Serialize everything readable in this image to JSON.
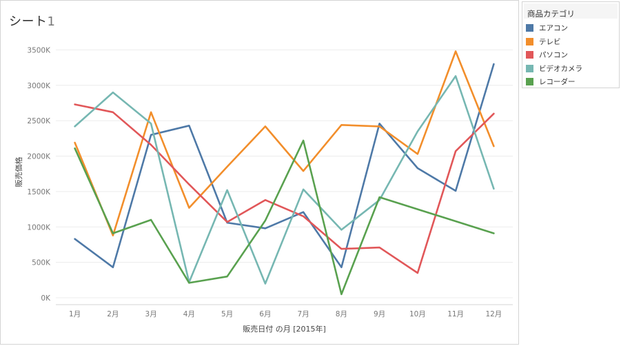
{
  "sheet": {
    "title": "シート",
    "title_number": "1"
  },
  "legend": {
    "title": "商品カテゴリ"
  },
  "chart_data": {
    "type": "line",
    "xlabel": "販売日付 の月 [2015年]",
    "ylabel": "販売価格",
    "categories": [
      "1月",
      "2月",
      "3月",
      "4月",
      "5月",
      "6月",
      "7月",
      "8月",
      "9月",
      "10月",
      "11月",
      "12月"
    ],
    "ylim": [
      0,
      3500000
    ],
    "yticks": [
      0,
      500000,
      1000000,
      1500000,
      2000000,
      2500000,
      3000000,
      3500000
    ],
    "ytick_labels": [
      "0K",
      "500K",
      "1000K",
      "1500K",
      "2000K",
      "2500K",
      "3000K",
      "3500K"
    ],
    "grid": true,
    "legend_position": "right",
    "series": [
      {
        "name": "エアコン",
        "color": "#4e79a7",
        "values": [
          830000,
          430000,
          2300000,
          2430000,
          1060000,
          980000,
          1210000,
          430000,
          2460000,
          1830000,
          1510000,
          3300000
        ]
      },
      {
        "name": "テレビ",
        "color": "#f28e2b",
        "values": [
          2190000,
          880000,
          2620000,
          1270000,
          1850000,
          2420000,
          1790000,
          2440000,
          2420000,
          2030000,
          3480000,
          2140000
        ]
      },
      {
        "name": "パソコン",
        "color": "#e15759",
        "values": [
          2730000,
          2620000,
          2160000,
          1600000,
          1070000,
          1380000,
          1150000,
          690000,
          710000,
          350000,
          2070000,
          2600000
        ]
      },
      {
        "name": "ビデオカメラ",
        "color": "#76b7b2",
        "values": [
          2420000,
          2900000,
          2460000,
          220000,
          1520000,
          200000,
          1530000,
          960000,
          1380000,
          2350000,
          3130000,
          1540000
        ]
      },
      {
        "name": "レコーダー",
        "color": "#59a14f",
        "values": [
          2110000,
          910000,
          1100000,
          210000,
          300000,
          1090000,
          2220000,
          50000,
          1420000,
          null,
          null,
          910000
        ]
      }
    ]
  }
}
